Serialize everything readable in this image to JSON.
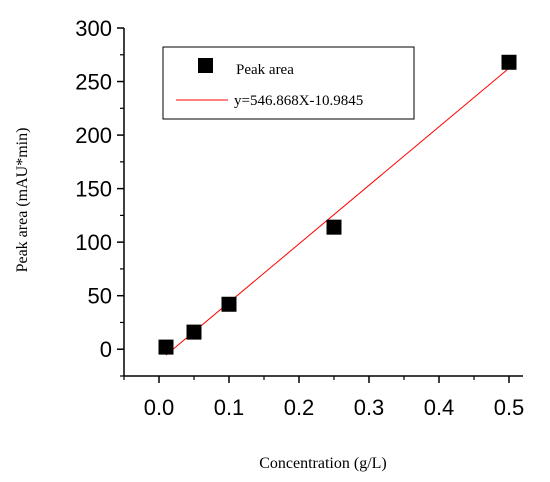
{
  "chart_data": {
    "type": "scatter",
    "xlabel": "Concentration (g/L)",
    "ylabel": "Peak area (mAU*min)",
    "xlim": [
      -0.05,
      0.52
    ],
    "ylim": [
      -25,
      300
    ],
    "xticks": [
      "0.0",
      "0.1",
      "0.2",
      "0.3",
      "0.4",
      "0.5"
    ],
    "yticks": [
      "0",
      "50",
      "100",
      "150",
      "200",
      "250",
      "300"
    ],
    "series": [
      {
        "name": "Peak area",
        "marker": "square",
        "color": "#000000",
        "x": [
          0.01,
          0.05,
          0.1,
          0.25,
          0.5
        ],
        "y": [
          2,
          16,
          42,
          114,
          268
        ]
      }
    ],
    "fit_line": {
      "name": "y=546.868X-10.9845",
      "slope": 546.868,
      "intercept": -10.9845,
      "x_range": [
        0.01,
        0.5
      ],
      "color": "#ff0000"
    },
    "legend_position": "top-left",
    "grid": false
  }
}
